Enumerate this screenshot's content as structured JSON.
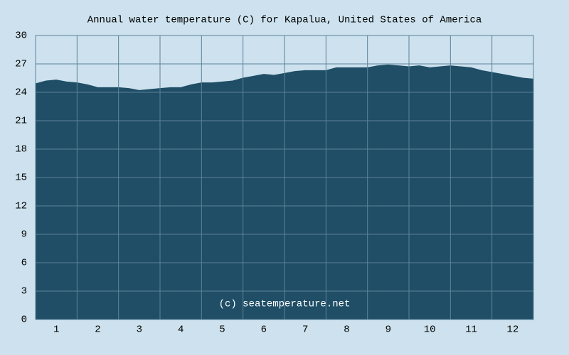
{
  "chart_data": {
    "type": "area",
    "title": "Annual water temperature (C) for Kapalua, United States of America",
    "annotation": "(c) seatemperature.net",
    "x": [
      0,
      0.25,
      0.5,
      0.75,
      1,
      1.25,
      1.5,
      1.75,
      2,
      2.25,
      2.5,
      2.75,
      3,
      3.25,
      3.5,
      3.75,
      4,
      4.25,
      4.5,
      4.75,
      5,
      5.25,
      5.5,
      5.75,
      6,
      6.25,
      6.5,
      6.75,
      7,
      7.25,
      7.5,
      7.75,
      8,
      8.25,
      8.5,
      8.75,
      9,
      9.25,
      9.5,
      9.75,
      10,
      10.25,
      10.5,
      10.75,
      11,
      11.25,
      11.5,
      11.75,
      12
    ],
    "values": [
      24.9,
      25.2,
      25.3,
      25.1,
      25.0,
      24.8,
      24.5,
      24.5,
      24.5,
      24.4,
      24.2,
      24.3,
      24.4,
      24.5,
      24.5,
      24.8,
      25.0,
      25.0,
      25.1,
      25.2,
      25.5,
      25.7,
      25.9,
      25.8,
      26.0,
      26.2,
      26.3,
      26.3,
      26.3,
      26.6,
      26.6,
      26.6,
      26.6,
      26.8,
      26.9,
      26.8,
      26.7,
      26.8,
      26.6,
      26.7,
      26.8,
      26.7,
      26.6,
      26.3,
      26.1,
      25.9,
      25.7,
      25.5,
      25.4
    ],
    "color": "#1f4e66",
    "xlim": [
      0,
      12
    ],
    "xticks": [
      {
        "value": 0.5,
        "label": "1"
      },
      {
        "value": 1.5,
        "label": "2"
      },
      {
        "value": 2.5,
        "label": "3"
      },
      {
        "value": 3.5,
        "label": "4"
      },
      {
        "value": 4.5,
        "label": "5"
      },
      {
        "value": 5.5,
        "label": "6"
      },
      {
        "value": 6.5,
        "label": "7"
      },
      {
        "value": 7.5,
        "label": "8"
      },
      {
        "value": 8.5,
        "label": "9"
      },
      {
        "value": 9.5,
        "label": "10"
      },
      {
        "value": 10.5,
        "label": "11"
      },
      {
        "value": 11.5,
        "label": "12"
      }
    ],
    "ylim": [
      0,
      30
    ],
    "yticks": [
      0,
      3,
      6,
      9,
      12,
      15,
      18,
      21,
      24,
      27,
      30
    ],
    "grid": true
  }
}
